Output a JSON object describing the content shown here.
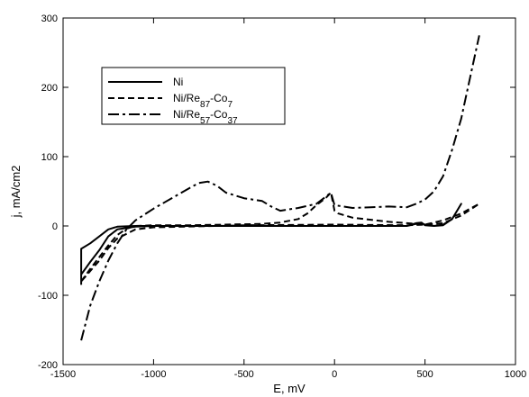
{
  "chart_data": {
    "type": "line",
    "xlabel": "E, mV",
    "ylabel": "j, mA/cm2",
    "xlim": [
      -1500,
      1000
    ],
    "ylim": [
      -200,
      300
    ],
    "xticks": [
      -1500,
      -1000,
      -500,
      0,
      500,
      1000
    ],
    "yticks": [
      -200,
      -100,
      0,
      100,
      200,
      300
    ],
    "grid": false,
    "legend_position": "top-left",
    "series": [
      {
        "name": "Ni",
        "label_base": "Ni",
        "label_parts": [],
        "style": "solid",
        "points": [
          [
            -1400,
            -85
          ],
          [
            -1400,
            -33
          ],
          [
            -1350,
            -25
          ],
          [
            -1300,
            -15
          ],
          [
            -1250,
            -5
          ],
          [
            -1200,
            -1
          ],
          [
            -1100,
            0
          ],
          [
            -1000,
            0
          ],
          [
            -500,
            0
          ],
          [
            0,
            0
          ],
          [
            400,
            0
          ],
          [
            450,
            4
          ],
          [
            480,
            5
          ],
          [
            500,
            1
          ],
          [
            550,
            0
          ],
          [
            600,
            2
          ],
          [
            650,
            10
          ],
          [
            700,
            32
          ],
          [
            650,
            10
          ],
          [
            600,
            1
          ],
          [
            550,
            0
          ],
          [
            500,
            2
          ],
          [
            480,
            4
          ],
          [
            450,
            3
          ],
          [
            400,
            0
          ],
          [
            0,
            0
          ],
          [
            -500,
            0
          ],
          [
            -1000,
            0
          ],
          [
            -1100,
            -1
          ],
          [
            -1200,
            -5
          ],
          [
            -1250,
            -15
          ],
          [
            -1300,
            -35
          ],
          [
            -1350,
            -52
          ],
          [
            -1400,
            -70
          ],
          [
            -1400,
            -85
          ]
        ]
      },
      {
        "name": "Ni/Re87-Co7",
        "label_base": "Ni/Re",
        "label_parts": [
          [
            "87",
            "-Co"
          ],
          [
            "7",
            ""
          ]
        ],
        "style": "dashed",
        "points": [
          [
            -1400,
            -80
          ],
          [
            -1350,
            -62
          ],
          [
            -1300,
            -45
          ],
          [
            -1250,
            -28
          ],
          [
            -1200,
            -13
          ],
          [
            -1150,
            -4
          ],
          [
            -1100,
            0
          ],
          [
            -1000,
            1
          ],
          [
            -800,
            1
          ],
          [
            -600,
            2
          ],
          [
            -400,
            3
          ],
          [
            -300,
            5
          ],
          [
            -200,
            10
          ],
          [
            -150,
            18
          ],
          [
            -100,
            30
          ],
          [
            -50,
            40
          ],
          [
            -20,
            48
          ],
          [
            0,
            22
          ],
          [
            20,
            18
          ],
          [
            100,
            12
          ],
          [
            200,
            9
          ],
          [
            300,
            6
          ],
          [
            400,
            4
          ],
          [
            500,
            2
          ],
          [
            600,
            8
          ],
          [
            700,
            18
          ],
          [
            800,
            32
          ],
          [
            700,
            15
          ],
          [
            600,
            4
          ],
          [
            500,
            2
          ],
          [
            400,
            1
          ],
          [
            0,
            2
          ],
          [
            -500,
            1
          ],
          [
            -1000,
            -2
          ],
          [
            -1100,
            -5
          ],
          [
            -1200,
            -18
          ],
          [
            -1250,
            -32
          ],
          [
            -1300,
            -50
          ],
          [
            -1350,
            -65
          ],
          [
            -1400,
            -80
          ]
        ]
      },
      {
        "name": "Ni/Re57-Co37",
        "label_base": "Ni/Re",
        "label_parts": [
          [
            "57",
            "-Co"
          ],
          [
            "37",
            ""
          ]
        ],
        "style": "dashdot",
        "points": [
          [
            -1400,
            -165
          ],
          [
            -1375,
            -140
          ],
          [
            -1350,
            -115
          ],
          [
            -1300,
            -80
          ],
          [
            -1250,
            -50
          ],
          [
            -1200,
            -25
          ],
          [
            -1150,
            -5
          ],
          [
            -1100,
            8
          ],
          [
            -1000,
            25
          ],
          [
            -900,
            40
          ],
          [
            -800,
            55
          ],
          [
            -750,
            62
          ],
          [
            -700,
            64
          ],
          [
            -650,
            58
          ],
          [
            -600,
            48
          ],
          [
            -500,
            40
          ],
          [
            -450,
            38
          ],
          [
            -400,
            36
          ],
          [
            -350,
            28
          ],
          [
            -300,
            22
          ],
          [
            -250,
            24
          ],
          [
            -200,
            26
          ],
          [
            -100,
            32
          ],
          [
            -50,
            42
          ],
          [
            -20,
            48
          ],
          [
            0,
            30
          ],
          [
            50,
            28
          ],
          [
            100,
            26
          ],
          [
            200,
            27
          ],
          [
            300,
            28
          ],
          [
            400,
            27
          ],
          [
            450,
            32
          ],
          [
            500,
            38
          ],
          [
            550,
            50
          ],
          [
            600,
            72
          ],
          [
            650,
            110
          ],
          [
            700,
            155
          ],
          [
            750,
            215
          ],
          [
            800,
            275
          ]
        ]
      }
    ]
  }
}
